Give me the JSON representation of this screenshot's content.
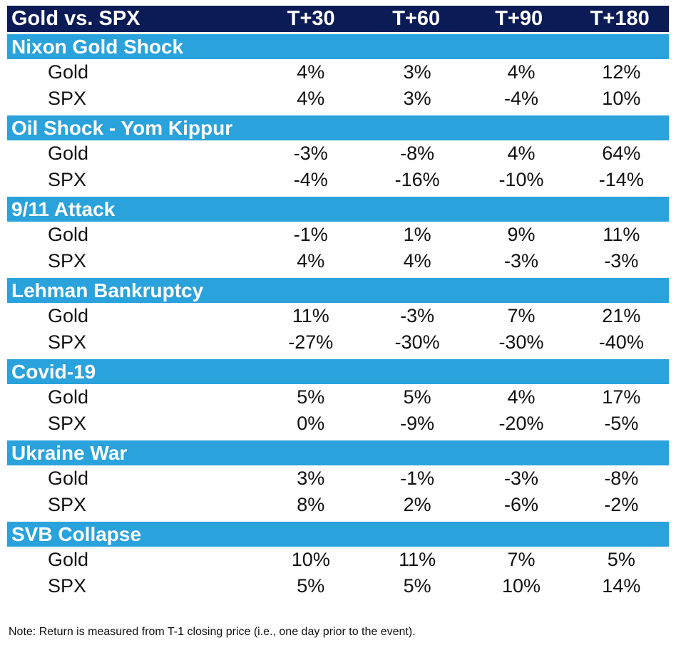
{
  "chart_data": {
    "type": "table",
    "title": "Gold vs. SPX",
    "columns": [
      "T+30",
      "T+60",
      "T+90",
      "T+180"
    ],
    "sections": [
      {
        "name": "Nixon Gold Shock",
        "rows": [
          {
            "label": "Gold",
            "values": [
              "4%",
              "3%",
              "4%",
              "12%"
            ]
          },
          {
            "label": "SPX",
            "values": [
              "4%",
              "3%",
              "-4%",
              "10%"
            ]
          }
        ]
      },
      {
        "name": "Oil Shock - Yom Kippur",
        "rows": [
          {
            "label": "Gold",
            "values": [
              "-3%",
              "-8%",
              "4%",
              "64%"
            ]
          },
          {
            "label": "SPX",
            "values": [
              "-4%",
              "-16%",
              "-10%",
              "-14%"
            ]
          }
        ]
      },
      {
        "name": "9/11 Attack",
        "rows": [
          {
            "label": "Gold",
            "values": [
              "-1%",
              "1%",
              "9%",
              "11%"
            ]
          },
          {
            "label": "SPX",
            "values": [
              "4%",
              "4%",
              "-3%",
              "-3%"
            ]
          }
        ]
      },
      {
        "name": "Lehman Bankruptcy",
        "rows": [
          {
            "label": "Gold",
            "values": [
              "11%",
              "-3%",
              "7%",
              "21%"
            ]
          },
          {
            "label": "SPX",
            "values": [
              "-27%",
              "-30%",
              "-30%",
              "-40%"
            ]
          }
        ]
      },
      {
        "name": "Covid-19",
        "rows": [
          {
            "label": "Gold",
            "values": [
              "5%",
              "5%",
              "4%",
              "17%"
            ]
          },
          {
            "label": "SPX",
            "values": [
              "0%",
              "-9%",
              "-20%",
              "-5%"
            ]
          }
        ]
      },
      {
        "name": "Ukraine War",
        "rows": [
          {
            "label": "Gold",
            "values": [
              "3%",
              "-1%",
              "-3%",
              "-8%"
            ]
          },
          {
            "label": "SPX",
            "values": [
              "8%",
              "2%",
              "-6%",
              "-2%"
            ]
          }
        ]
      },
      {
        "name": "SVB Collapse",
        "rows": [
          {
            "label": "Gold",
            "values": [
              "10%",
              "11%",
              "7%",
              "5%"
            ]
          },
          {
            "label": "SPX",
            "values": [
              "5%",
              "5%",
              "10%",
              "14%"
            ]
          }
        ]
      }
    ],
    "note": "Note: Return is measured from T-1 closing price (i.e., one day prior to the event).",
    "colors": {
      "header_bg": "#0b1b56",
      "section_bg": "#2aa2dc",
      "header_text": "#ffffff",
      "body_text": "#111111"
    }
  }
}
